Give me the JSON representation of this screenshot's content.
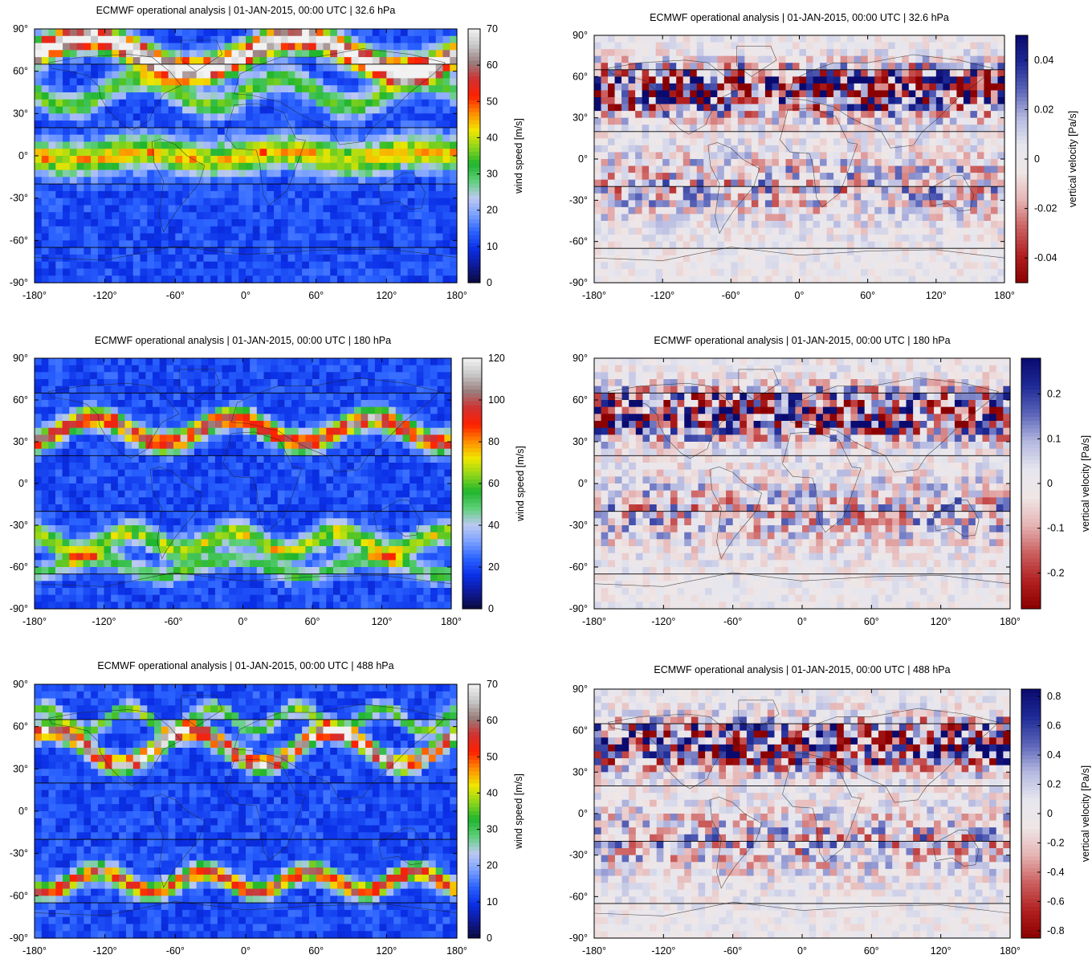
{
  "colormaps": {
    "wind": [
      "#0a0a3c",
      "#0f1a9a",
      "#0a2fe6",
      "#2a62ff",
      "#7aa0ff",
      "#bcc9f2",
      "#5fcf7a",
      "#1fb52e",
      "#8ed61a",
      "#f0e600",
      "#ff8c00",
      "#ff2000",
      "#d23030",
      "#9a7d7d",
      "#c7c7c7",
      "#f2f2f2"
    ],
    "vertical": [
      "#8a0000",
      "#b22020",
      "#cc6060",
      "#e6b4b4",
      "#efe6e6",
      "#e6e6ee",
      "#b4b8e0",
      "#5a64b8",
      "#1e2a96",
      "#0a0a6e"
    ]
  },
  "panels": [
    {
      "title": "ECMWF operational analysis | 01-JAN-2015, 00:00 UTC | 32.6 hPa",
      "variable": "wind",
      "colorbar_label": "wind speed [m/s]",
      "colorbar_ticks": [
        "0",
        "10",
        "20",
        "30",
        "40",
        "50",
        "60",
        "70"
      ],
      "chart_data": {
        "type": "heatmap",
        "xlim": [
          -180,
          180
        ],
        "ylim": [
          -90,
          90
        ],
        "zlim": [
          0,
          70
        ],
        "xticks": [
          "-180°",
          "-120°",
          "-60°",
          "0°",
          "60°",
          "120°",
          "180°"
        ],
        "yticks": [
          "-90°",
          "-60°",
          "-30°",
          "0°",
          "30°",
          "60°",
          "90°"
        ],
        "reference_lines_lat": [
          65,
          20,
          -20,
          -65
        ]
      }
    },
    {
      "title": "ECMWF operational analysis | 01-JAN-2015, 00:00 UTC | 32.6 hPa",
      "variable": "vertical",
      "colorbar_label": "vertical velocity [Pa/s]",
      "colorbar_ticks": [
        "-0.04",
        "-0.02",
        "0",
        "0.02",
        "0.04"
      ],
      "chart_data": {
        "type": "heatmap",
        "xlim": [
          -180,
          180
        ],
        "ylim": [
          -90,
          90
        ],
        "zlim": [
          -0.05,
          0.05
        ],
        "xticks": [
          "-180°",
          "-120°",
          "-60°",
          "0°",
          "60°",
          "120°",
          "180°"
        ],
        "yticks": [
          "-90°",
          "-60°",
          "-30°",
          "0°",
          "30°",
          "60°",
          "90°"
        ],
        "reference_lines_lat": [
          65,
          20,
          -20,
          -65
        ]
      }
    },
    {
      "title": "ECMWF operational analysis | 01-JAN-2015, 00:00 UTC | 180 hPa",
      "variable": "wind",
      "colorbar_label": "wind speed [m/s]",
      "colorbar_ticks": [
        "0",
        "20",
        "40",
        "60",
        "80",
        "100",
        "120"
      ],
      "chart_data": {
        "type": "heatmap",
        "xlim": [
          -180,
          180
        ],
        "ylim": [
          -90,
          90
        ],
        "zlim": [
          0,
          120
        ],
        "xticks": [
          "-180°",
          "-120°",
          "-60°",
          "0°",
          "60°",
          "120°",
          "180°"
        ],
        "yticks": [
          "-90°",
          "-60°",
          "-30°",
          "0°",
          "30°",
          "60°",
          "90°"
        ],
        "reference_lines_lat": [
          65,
          20,
          -20,
          -65
        ]
      }
    },
    {
      "title": "ECMWF operational analysis | 01-JAN-2015, 00:00 UTC | 180 hPa",
      "variable": "vertical",
      "colorbar_label": "vertical velocity [Pa/s]",
      "colorbar_ticks": [
        "-0.2",
        "-0.1",
        "0",
        "0.1",
        "0.2"
      ],
      "chart_data": {
        "type": "heatmap",
        "xlim": [
          -180,
          180
        ],
        "ylim": [
          -90,
          90
        ],
        "zlim": [
          -0.28,
          0.28
        ],
        "xticks": [
          "-180°",
          "-120°",
          "-60°",
          "0°",
          "60°",
          "120°",
          "180°"
        ],
        "yticks": [
          "-90°",
          "-60°",
          "-30°",
          "0°",
          "30°",
          "60°",
          "90°"
        ],
        "reference_lines_lat": [
          65,
          20,
          -20,
          -65
        ]
      }
    },
    {
      "title": "ECMWF operational analysis | 01-JAN-2015, 00:00 UTC | 488 hPa",
      "variable": "wind",
      "colorbar_label": "wind speed [m/s]",
      "colorbar_ticks": [
        "0",
        "10",
        "20",
        "30",
        "40",
        "50",
        "60",
        "70"
      ],
      "chart_data": {
        "type": "heatmap",
        "xlim": [
          -180,
          180
        ],
        "ylim": [
          -90,
          90
        ],
        "zlim": [
          0,
          70
        ],
        "xticks": [
          "-180°",
          "-120°",
          "-60°",
          "0°",
          "60°",
          "120°",
          "180°"
        ],
        "yticks": [
          "-90°",
          "-60°",
          "-30°",
          "0°",
          "30°",
          "60°",
          "90°"
        ],
        "reference_lines_lat": [
          65,
          20,
          -20,
          -65
        ]
      }
    },
    {
      "title": "ECMWF operational analysis | 01-JAN-2015, 00:00 UTC | 488 hPa",
      "variable": "vertical",
      "colorbar_label": "vertical velocity [Pa/s]",
      "colorbar_ticks": [
        "-0.8",
        "-0.6",
        "-0.4",
        "-0.2",
        "0",
        "0.2",
        "0.4",
        "0.6",
        "0.8"
      ],
      "chart_data": {
        "type": "heatmap",
        "xlim": [
          -180,
          180
        ],
        "ylim": [
          -90,
          90
        ],
        "zlim": [
          -0.85,
          0.85
        ],
        "xticks": [
          "-180°",
          "-120°",
          "-60°",
          "0°",
          "60°",
          "120°",
          "180°"
        ],
        "yticks": [
          "-90°",
          "-60°",
          "-30°",
          "0°",
          "30°",
          "60°",
          "90°"
        ],
        "reference_lines_lat": [
          65,
          20,
          -20,
          -65
        ]
      }
    }
  ]
}
